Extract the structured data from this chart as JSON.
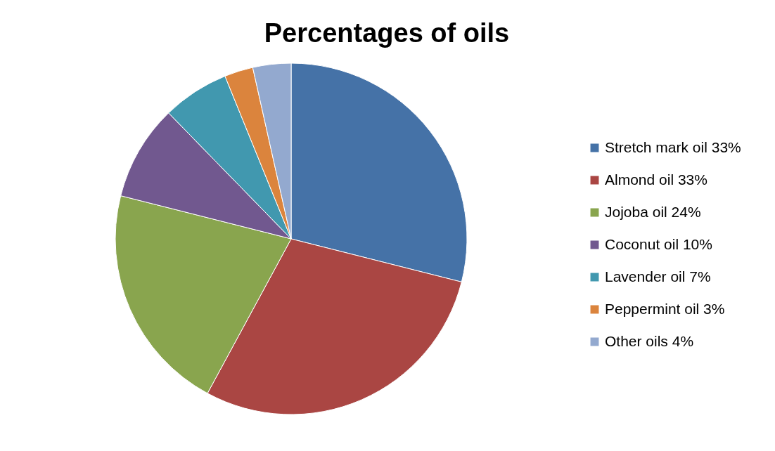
{
  "chart_data": {
    "type": "pie",
    "title": "Percentages of oils",
    "categories": [
      "Stretch mark oil 33%",
      "Almond oil 33%",
      "Jojoba oil 24%",
      "Coconut oil 10%",
      "Lavender oil 7%",
      "Peppermint oil 3%",
      "Other oils 4%"
    ],
    "values": [
      33,
      33,
      24,
      10,
      7,
      3,
      4
    ],
    "colors": [
      "#4572a7",
      "#aa4643",
      "#89a54e",
      "#71588f",
      "#4198af",
      "#db843d",
      "#93a9cf"
    ],
    "legend": "right"
  }
}
